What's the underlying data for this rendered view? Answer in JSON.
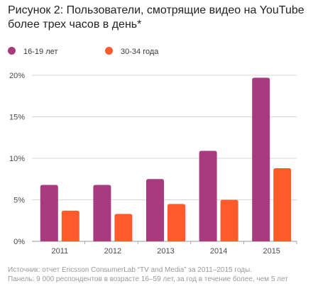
{
  "title": "Рисунок 2: Пользователи, смотрящие видео на YouTube\nболее трех часов в день*",
  "legend": [
    {
      "label": "16-19 лет",
      "color": "#a83b7e"
    },
    {
      "label": "30-34 года",
      "color": "#ff5a2c"
    }
  ],
  "chart_data": {
    "type": "bar",
    "categories": [
      "2011",
      "2012",
      "2013",
      "2014",
      "2015"
    ],
    "series": [
      {
        "name": "16-19 лет",
        "color": "#a83b7e",
        "values": [
          6.8,
          6.8,
          7.5,
          10.9,
          19.7
        ]
      },
      {
        "name": "30-34 года",
        "color": "#ff5a2c",
        "values": [
          3.7,
          3.3,
          4.5,
          5.0,
          8.8
        ]
      }
    ],
    "ylim": [
      0,
      20
    ],
    "yticks": [
      "0%",
      "5%",
      "10%",
      "15%",
      "20%"
    ],
    "ytick_values": [
      0,
      5,
      10,
      15,
      20
    ],
    "grid": true,
    "legend_position": "top-left"
  },
  "footnote": {
    "line1": "Источник: отчет Ericsson ConsumerLab “TV and Media” за 2011–2015 годы.",
    "line2": "Панель: 9 000 респондентов в возрасте 16–59 лет, за год в течение более, чем 5 лет"
  }
}
